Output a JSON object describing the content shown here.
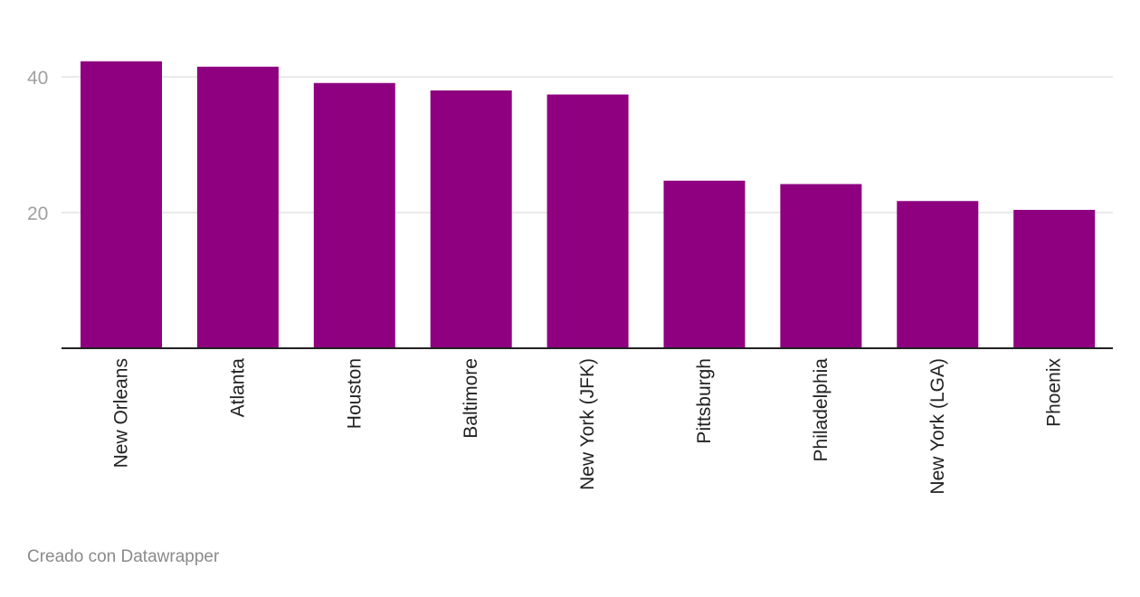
{
  "chart_data": {
    "type": "bar",
    "title": "",
    "xlabel": "",
    "ylabel": "",
    "categories": [
      "New Orleans",
      "Atlanta",
      "Houston",
      "Baltimore",
      "New York (JFK)",
      "Pittsburgh",
      "Philadelphia",
      "New York (LGA)",
      "Phoenix"
    ],
    "values": [
      42.3,
      41.5,
      39.1,
      38.0,
      37.4,
      24.7,
      24.2,
      21.7,
      20.4
    ],
    "ylim": [
      0,
      44
    ],
    "yticks": [
      20,
      40
    ],
    "grid": true,
    "legend": "none",
    "bar_color": "#8e0080"
  },
  "footer": {
    "credit": "Creado con Datawrapper"
  }
}
